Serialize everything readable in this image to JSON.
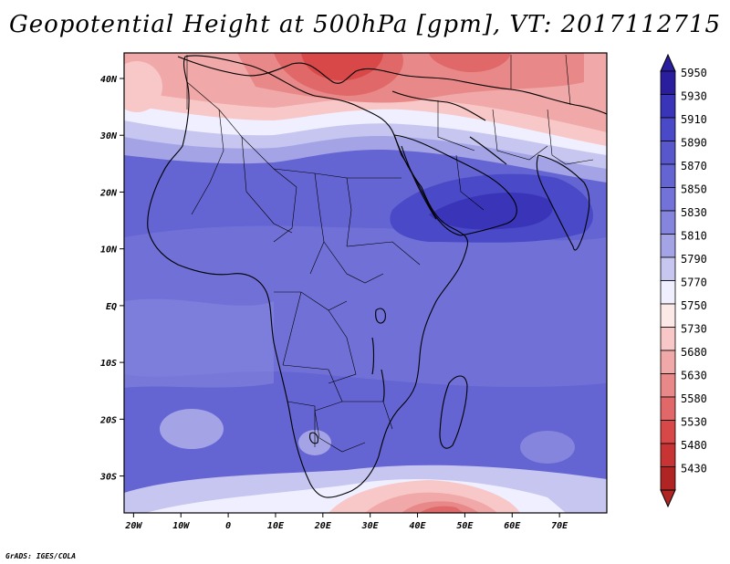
{
  "title": "Geopotential Height at 500hPa [gpm], VT: 2017112715",
  "credit": "GrADS: IGES/COLA",
  "map": {
    "lon_range": [
      -22,
      80
    ],
    "lat_range": [
      -36.5,
      44.5
    ],
    "lat_ticks": [
      {
        "value": 40,
        "label": "40N"
      },
      {
        "value": 30,
        "label": "30N"
      },
      {
        "value": 20,
        "label": "20N"
      },
      {
        "value": 10,
        "label": "10N"
      },
      {
        "value": 0,
        "label": "EQ"
      },
      {
        "value": -10,
        "label": "10S"
      },
      {
        "value": -20,
        "label": "20S"
      },
      {
        "value": -30,
        "label": "30S"
      }
    ],
    "lon_ticks": [
      {
        "value": -20,
        "label": "20W"
      },
      {
        "value": -10,
        "label": "10W"
      },
      {
        "value": 0,
        "label": "0"
      },
      {
        "value": 10,
        "label": "10E"
      },
      {
        "value": 20,
        "label": "20E"
      },
      {
        "value": 30,
        "label": "30E"
      },
      {
        "value": 40,
        "label": "40E"
      },
      {
        "value": 50,
        "label": "50E"
      },
      {
        "value": 60,
        "label": "60E"
      },
      {
        "value": 70,
        "label": "70E"
      }
    ]
  },
  "colorbar": {
    "levels_top_to_bottom": [
      "5950",
      "5930",
      "5910",
      "5890",
      "5870",
      "5850",
      "5830",
      "5810",
      "5790",
      "5770",
      "5750",
      "5730",
      "5680",
      "5630",
      "5580",
      "5530",
      "5480",
      "5430"
    ],
    "colors_top_to_bottom": [
      "#2b1e9e",
      "#3a35b8",
      "#4a4ac8",
      "#5858cc",
      "#6464d2",
      "#7272d8",
      "#8585de",
      "#a3a3e6",
      "#c6c6f0",
      "#efefff",
      "#fde8e8",
      "#f8c8c8",
      "#f0a8a8",
      "#e88888",
      "#e06868",
      "#d84848",
      "#c83434",
      "#b02424"
    ]
  }
}
